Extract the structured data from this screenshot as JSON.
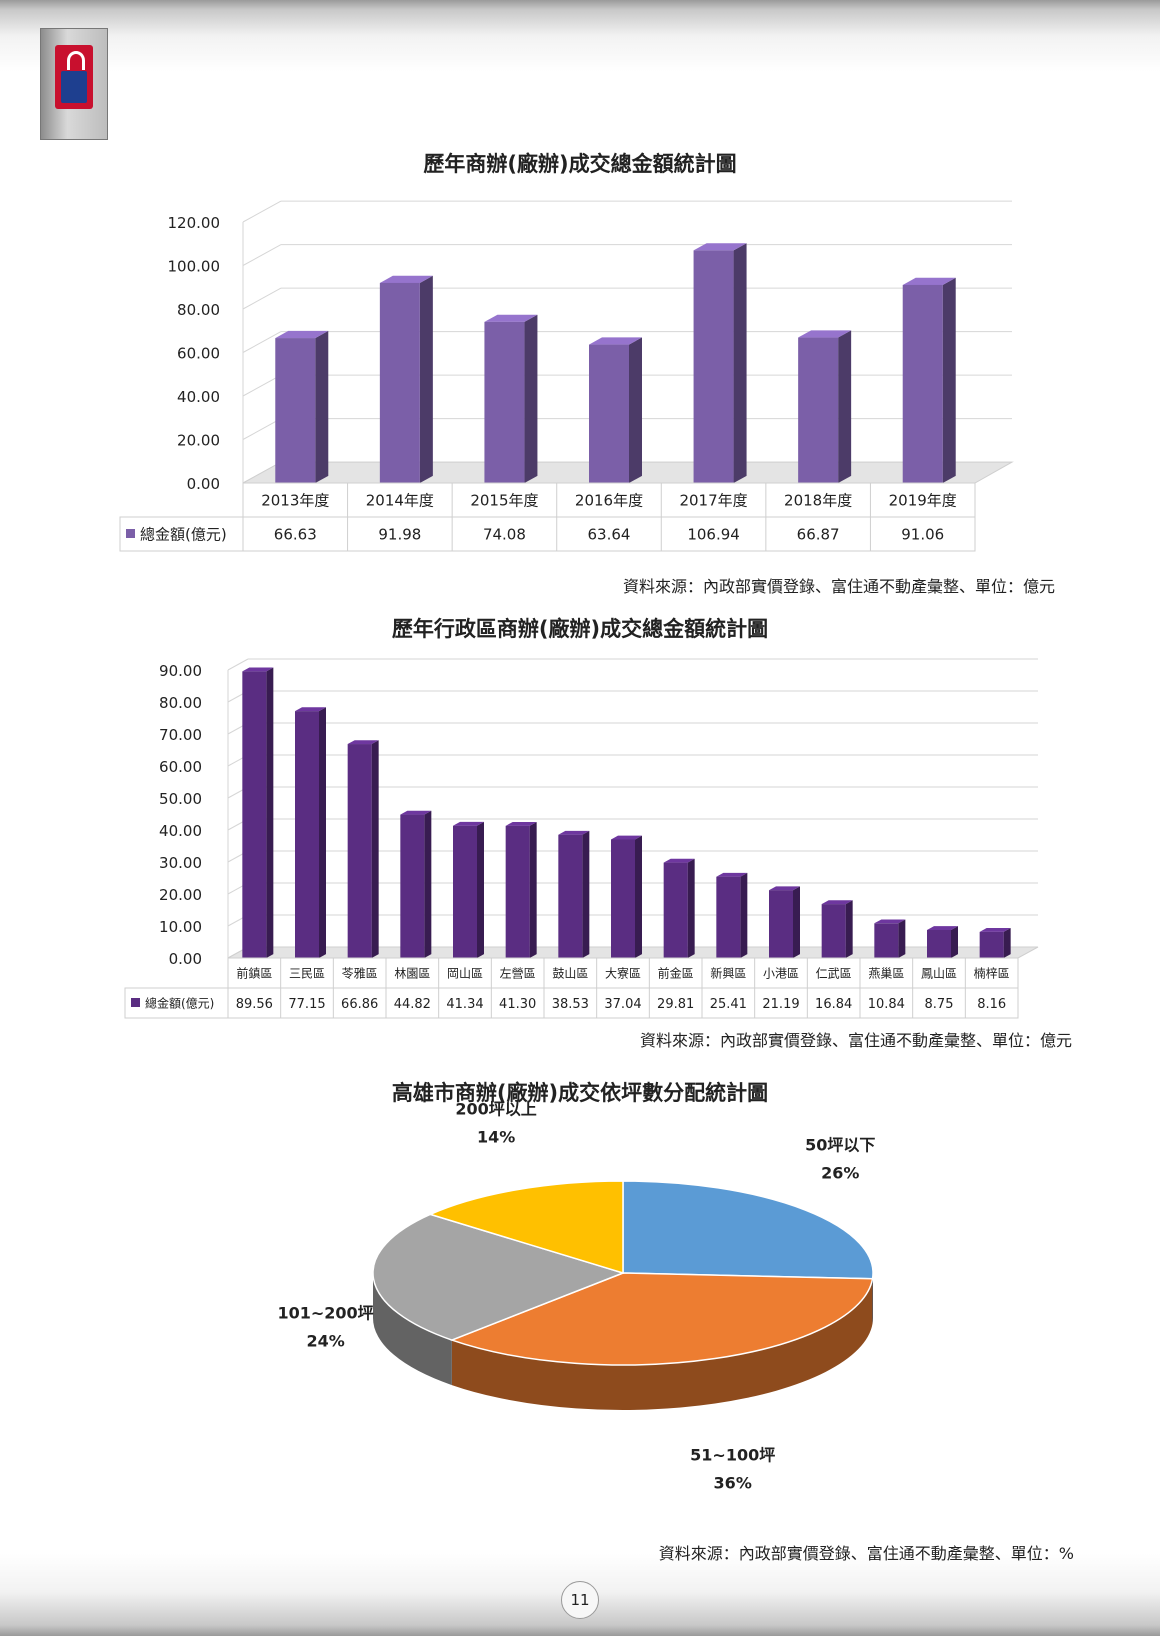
{
  "page_number": "11",
  "charts": {
    "chart1": {
      "title": "歷年商辦(廠辦)成交總金額統計圖",
      "source": "資料來源：內政部實價登錄、富住通不動產彙整、單位：億元"
    },
    "chart2": {
      "title": "歷年行政區商辦(廠辦)成交總金額統計圖",
      "source": "資料來源：內政部實價登錄、富住通不動產彙整、單位：億元"
    },
    "chart3": {
      "title": "高雄市商辦(廠辦)成交依坪數分配統計圖",
      "source": "資料來源：內政部實價登錄、富住通不動產彙整、單位：%"
    }
  },
  "chart_data": [
    {
      "type": "bar",
      "title": "歷年商辦(廠辦)成交總金額統計圖",
      "categories": [
        "2013年度",
        "2014年度",
        "2015年度",
        "2016年度",
        "2017年度",
        "2018年度",
        "2019年度"
      ],
      "series": [
        {
          "name": "總金額(億元)",
          "values": [
            66.63,
            91.98,
            74.08,
            63.64,
            106.94,
            66.87,
            91.06
          ]
        }
      ],
      "value_labels": [
        "66.63",
        "91.98",
        "74.08",
        "63.64",
        "106.94",
        "66.87",
        "91.06"
      ],
      "ylim": [
        0,
        120
      ],
      "yticks": [
        "0.00",
        "20.00",
        "40.00",
        "60.00",
        "80.00",
        "100.00",
        "120.00"
      ],
      "grid": true,
      "color": "#7b5fa8",
      "legend": "data-table"
    },
    {
      "type": "bar",
      "title": "歷年行政區商辦(廠辦)成交總金額統計圖",
      "categories": [
        "前鎮區",
        "三民區",
        "苓雅區",
        "林園區",
        "岡山區",
        "左營區",
        "鼓山區",
        "大寮區",
        "前金區",
        "新興區",
        "小港區",
        "仁武區",
        "燕巢區",
        "鳳山區",
        "楠梓區"
      ],
      "series": [
        {
          "name": "總金額(億元)",
          "values": [
            89.56,
            77.15,
            66.86,
            44.82,
            41.34,
            41.3,
            38.53,
            37.04,
            29.81,
            25.41,
            21.19,
            16.84,
            10.84,
            8.75,
            8.16
          ]
        }
      ],
      "value_labels": [
        "89.56",
        "77.15",
        "66.86",
        "44.82",
        "41.34",
        "41.30",
        "38.53",
        "37.04",
        "29.81",
        "25.41",
        "21.19",
        "16.84",
        "10.84",
        "8.75",
        "8.16"
      ],
      "ylim": [
        0,
        90
      ],
      "yticks": [
        "0.00",
        "10.00",
        "20.00",
        "30.00",
        "40.00",
        "50.00",
        "60.00",
        "70.00",
        "80.00",
        "90.00"
      ],
      "grid": true,
      "color": "#5a2d82",
      "legend": "data-table"
    },
    {
      "type": "pie",
      "title": "高雄市商辦(廠辦)成交依坪數分配統計圖",
      "slices": [
        {
          "label": "50坪以下",
          "value": 26,
          "text": "26%",
          "color": "#5b9bd5"
        },
        {
          "label": "51~100坪",
          "value": 36,
          "text": "36%",
          "color": "#ed7d31"
        },
        {
          "label": "101~200坪",
          "value": 24,
          "text": "24%",
          "color": "#a5a5a5"
        },
        {
          "label": "200坪以上",
          "value": 14,
          "text": "14%",
          "color": "#ffc000"
        }
      ]
    }
  ]
}
